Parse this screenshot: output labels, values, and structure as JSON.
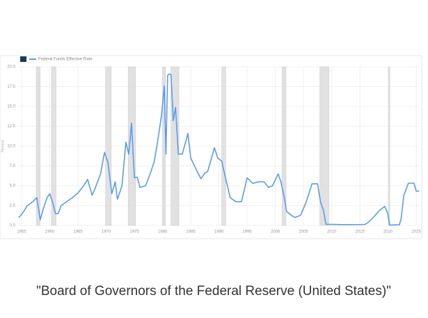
{
  "chart_data": {
    "type": "line",
    "legend": "Federal Funds Effective Rate",
    "y_label": "Percent",
    "caption": "\"Board of Governors of the Federal Reserve (United States)\"",
    "x": [
      1954.5,
      1955,
      1955.5,
      1956,
      1957,
      1957.7,
      1958.3,
      1958.8,
      1959.5,
      1960,
      1960.5,
      1961,
      1961.5,
      1962,
      1963,
      1964,
      1965,
      1966,
      1966.7,
      1967.5,
      1968,
      1969,
      1969.7,
      1970.3,
      1971,
      1971.6,
      1972,
      1972.8,
      1973.5,
      1974,
      1974.5,
      1975,
      1975.5,
      1976,
      1977,
      1977.8,
      1978.5,
      1979,
      1979.8,
      1980.3,
      1980.6,
      1980.9,
      1981.2,
      1981.5,
      1981.9,
      1982.3,
      1982.8,
      1983.5,
      1984.5,
      1985,
      1986,
      1986.8,
      1987.5,
      1988,
      1989.2,
      1989.8,
      1990.5,
      1991,
      1992,
      1993,
      1994,
      1994.5,
      1995,
      1996,
      1997,
      1998,
      1998.8,
      1999.5,
      2000.5,
      2001,
      2001.6,
      2002,
      2003,
      2003.5,
      2004.5,
      2005.5,
      2006.5,
      2007.5,
      2008,
      2008.5,
      2009,
      2012,
      2015.9,
      2016.5,
      2017.5,
      2018.5,
      2019.4,
      2019.9,
      2020.3,
      2022,
      2022.3,
      2022.8,
      2023.6,
      2024.6,
      2025,
      2025.5
    ],
    "series": [
      {
        "name": "Federal Funds Effective Rate",
        "color": "#5b9bea",
        "values": [
          1.0,
          1.4,
          1.9,
          2.5,
          3.0,
          3.5,
          0.7,
          2.0,
          3.5,
          4.0,
          2.9,
          1.5,
          1.5,
          2.5,
          3.0,
          3.5,
          4.1,
          5.0,
          5.8,
          3.8,
          4.6,
          6.5,
          9.2,
          8.0,
          4.0,
          5.5,
          3.3,
          5.0,
          10.5,
          9.0,
          12.9,
          6.0,
          6.1,
          4.8,
          5.0,
          6.5,
          8.0,
          10.0,
          13.8,
          17.6,
          9.0,
          18.9,
          19.1,
          19.0,
          13.2,
          14.9,
          9.0,
          9.0,
          11.6,
          8.5,
          7.0,
          5.9,
          6.6,
          6.8,
          9.8,
          8.5,
          8.1,
          6.5,
          3.5,
          3.0,
          3.0,
          4.5,
          6.0,
          5.3,
          5.5,
          5.5,
          4.8,
          5.0,
          6.5,
          5.5,
          3.5,
          1.75,
          1.2,
          1.0,
          1.3,
          3.0,
          5.25,
          5.25,
          3.0,
          2.0,
          0.15,
          0.1,
          0.12,
          0.4,
          1.1,
          1.9,
          2.4,
          1.6,
          0.05,
          0.08,
          0.8,
          3.8,
          5.33,
          5.33,
          4.33,
          4.33
        ]
      }
    ],
    "recessions": [
      [
        1957.6,
        1958.3
      ],
      [
        1960.3,
        1961.1
      ],
      [
        1969.9,
        1970.9
      ],
      [
        1973.9,
        1975.2
      ],
      [
        1980.0,
        1980.5
      ],
      [
        1981.5,
        1982.9
      ],
      [
        1990.5,
        1991.2
      ],
      [
        2001.2,
        2001.9
      ],
      [
        2007.9,
        2009.5
      ],
      [
        2020.1,
        2020.3
      ]
    ],
    "recession_color": "#e1e1e1",
    "xlim": [
      1954.5,
      2025.6
    ],
    "xticks": [
      1955,
      1960,
      1965,
      1970,
      1975,
      1980,
      1985,
      1990,
      1995,
      2000,
      2005,
      2010,
      2015,
      2020,
      2025
    ],
    "ylim": [
      0,
      20
    ],
    "yticks": [
      {
        "value": 0,
        "label": "0.0"
      },
      2.5,
      {
        "value": 5,
        "label": "5.0"
      },
      7.5,
      {
        "value": 10,
        "label": "10.0"
      },
      12.5,
      {
        "value": 15,
        "label": "15.0"
      },
      17.5,
      {
        "value": 20,
        "label": "20.0"
      }
    ],
    "grid": true
  }
}
